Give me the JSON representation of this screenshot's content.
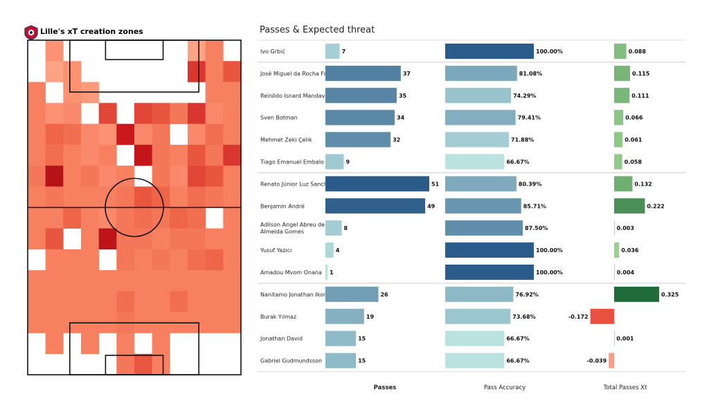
{
  "left_panel": {
    "title": "Lille's xT creation zones",
    "logo": "lille-crest-icon"
  },
  "chart_data": [
    {
      "type": "heatmap",
      "title": "Lille's xT creation zones",
      "grid_columns": 12,
      "grid_rows": 16,
      "colormap": [
        "#fcbba1",
        "#fc9272",
        "#ef6548",
        "#cb181d",
        "#a50f15"
      ],
      "intensity": [
        [
          0,
          0.25,
          0,
          0,
          0,
          0,
          0,
          0,
          0,
          0.15,
          0.35,
          0
        ],
        [
          0,
          0.15,
          0.25,
          0,
          0,
          0,
          0,
          0,
          0,
          0.65,
          0.35,
          0.55
        ],
        [
          0.35,
          0,
          0.25,
          0.2,
          0,
          0,
          0,
          0,
          0,
          0,
          0.35,
          0.35
        ],
        [
          0.35,
          0.25,
          0.3,
          0,
          0.6,
          0,
          0.6,
          0.55,
          0.4,
          0.65,
          0.3,
          0.35
        ],
        [
          0.35,
          0.5,
          0.45,
          0.3,
          0.25,
          0.75,
          0.3,
          0.4,
          0,
          0.3,
          0.45,
          0.35
        ],
        [
          0.35,
          0.45,
          0.35,
          0.3,
          0.35,
          0,
          0.8,
          0.4,
          0.35,
          0.55,
          0.4,
          0.65
        ],
        [
          0.4,
          0.9,
          0.35,
          0.4,
          0.3,
          0.35,
          0,
          0.4,
          0.3,
          0.6,
          0.55,
          0.35
        ],
        [
          0.35,
          0.4,
          0.35,
          0.35,
          0.35,
          0.4,
          0.55,
          0.5,
          0.35,
          0.45,
          0.4,
          0.35
        ],
        [
          0.35,
          0.35,
          0.5,
          0.35,
          0.3,
          0.4,
          0.45,
          0.4,
          0.5,
          0.45,
          0,
          0.35
        ],
        [
          0.35,
          0.55,
          0,
          0.35,
          0.85,
          0.4,
          0.4,
          0.35,
          0.4,
          0.4,
          0.35,
          0.35
        ],
        [
          0,
          0.35,
          0.35,
          0.35,
          0,
          0.4,
          0.35,
          0.4,
          0.35,
          0.45,
          0.5,
          0.35
        ],
        [
          0.35,
          0.35,
          0.35,
          0.35,
          0.35,
          0.35,
          0.35,
          0.35,
          0.35,
          0.35,
          0.35,
          0.35
        ],
        [
          0.35,
          0.35,
          0.35,
          0.35,
          0.35,
          0.45,
          0.35,
          0.35,
          0.45,
          0.35,
          0.35,
          0.35
        ],
        [
          0.35,
          0.35,
          0.35,
          0.35,
          0.35,
          0.4,
          0.35,
          0.35,
          0.35,
          0.35,
          0.35,
          0.35
        ],
        [
          0,
          0.35,
          0,
          0.35,
          0,
          0.35,
          0,
          0.35,
          0,
          0,
          0,
          0
        ],
        [
          0,
          0,
          0,
          0,
          0,
          0.4,
          0.55,
          0.35,
          0,
          0,
          0,
          0
        ]
      ]
    },
    {
      "type": "table",
      "title": "Passes & Expected threat",
      "columns": [
        "Passes",
        "Pass Accuracy",
        "Total Passes Xt"
      ],
      "players": [
        "Ivo Grbić",
        "José Miguel da Rocha Fonte",
        "Reinildo Isnard Mandava",
        "Sven Botman",
        "Mehmet Zeki Çelik",
        "Tiago Emanuel Embalo Djaló",
        "Renato Júnior Luz Sanches",
        "Benjamin André",
        "Adilson Angel Abreu de Almeida Gomes",
        "Yusuf Yazıcı",
        "Amadou Mvom Onana",
        "Nanitamo Jonathan Ikoné",
        "Burak Yılmaz",
        "Jonathan David",
        "Gabriel Gudmundsson"
      ],
      "passes": [
        7,
        37,
        35,
        34,
        32,
        9,
        51,
        49,
        8,
        4,
        1,
        26,
        19,
        15,
        15
      ],
      "pass_accuracy": [
        100.0,
        81.08,
        74.29,
        79.41,
        71.88,
        66.67,
        80.39,
        85.71,
        87.5,
        100.0,
        100.0,
        76.92,
        73.68,
        66.67,
        66.67
      ],
      "pass_accuracy_labels": [
        "100.00%",
        "81.08%",
        "74.29%",
        "79.41%",
        "71.88%",
        "66.67%",
        "80.39%",
        "85.71%",
        "87.50%",
        "100.00%",
        "100.00%",
        "76.92%",
        "73.68%",
        "66.67%",
        "66.67%"
      ],
      "xt": [
        0.088,
        0.115,
        0.111,
        0.066,
        0.061,
        0.058,
        0.132,
        0.222,
        0.003,
        0.036,
        0.004,
        0.325,
        -0.172,
        0.001,
        -0.039
      ],
      "xt_labels": [
        "0.088",
        "0.115",
        "0.111",
        "0.066",
        "0.061",
        "0.058",
        "0.132",
        "0.222",
        "0.003",
        "0.036",
        "0.004",
        "0.325",
        "-0.172",
        "0.001",
        "-0.039"
      ],
      "passes_max": 51,
      "accuracy_range": [
        66.67,
        100
      ],
      "xt_range": [
        -0.172,
        0.325
      ],
      "group_sizes": [
        1,
        5,
        5,
        4
      ],
      "colors": {
        "passes_low": "#b9e2e1",
        "passes_high": "#2b5b8a",
        "positive_low": "#a8dd99",
        "positive_high": "#1f6b3a",
        "negative_low": "#fbb4a0",
        "negative_high": "#e8513f"
      }
    }
  ]
}
